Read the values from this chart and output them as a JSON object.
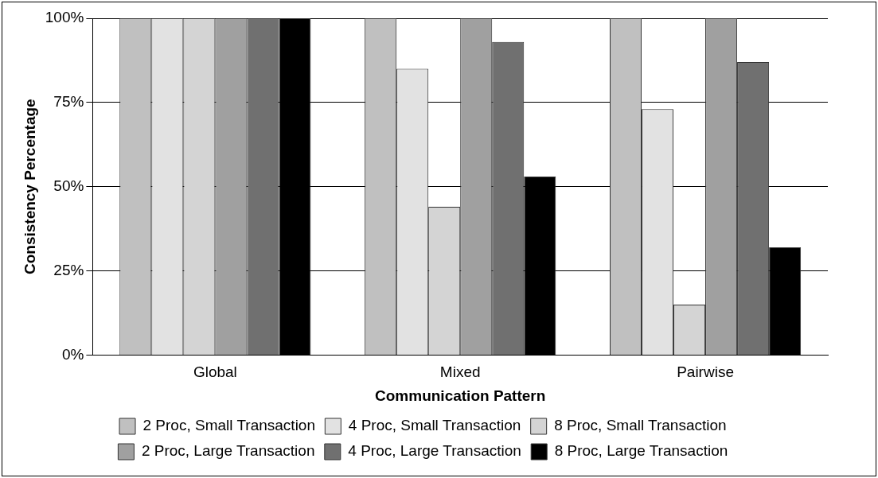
{
  "chart_data": {
    "type": "bar",
    "xlabel": "Communication Pattern",
    "ylabel": "Consistency Percentage",
    "categories": [
      "Global",
      "Mixed",
      "Pairwise"
    ],
    "series": [
      {
        "name": "2 Proc, Small Transaction",
        "color": "#c0c0c0",
        "values": [
          100,
          100,
          100
        ]
      },
      {
        "name": "4 Proc, Small Transaction",
        "color": "#e2e2e2",
        "values": [
          100,
          85,
          73
        ]
      },
      {
        "name": "8 Proc, Small Transaction",
        "color": "#d4d4d4",
        "values": [
          100,
          44,
          15
        ]
      },
      {
        "name": "2 Proc, Large Transaction",
        "color": "#a0a0a0",
        "values": [
          100,
          100,
          100
        ]
      },
      {
        "name": "4 Proc, Large Transaction",
        "color": "#707070",
        "values": [
          100,
          93,
          87
        ]
      },
      {
        "name": "8 Proc, Large Transaction",
        "color": "#000000",
        "values": [
          100,
          53,
          32
        ]
      }
    ],
    "ylim": [
      0,
      100
    ],
    "yticks": [
      {
        "value": 0,
        "label": "0%"
      },
      {
        "value": 25,
        "label": "25%"
      },
      {
        "value": 50,
        "label": "50%"
      },
      {
        "value": 75,
        "label": "75%"
      },
      {
        "value": 100,
        "label": "100%"
      }
    ],
    "grid": "y",
    "legend": "bottom"
  }
}
